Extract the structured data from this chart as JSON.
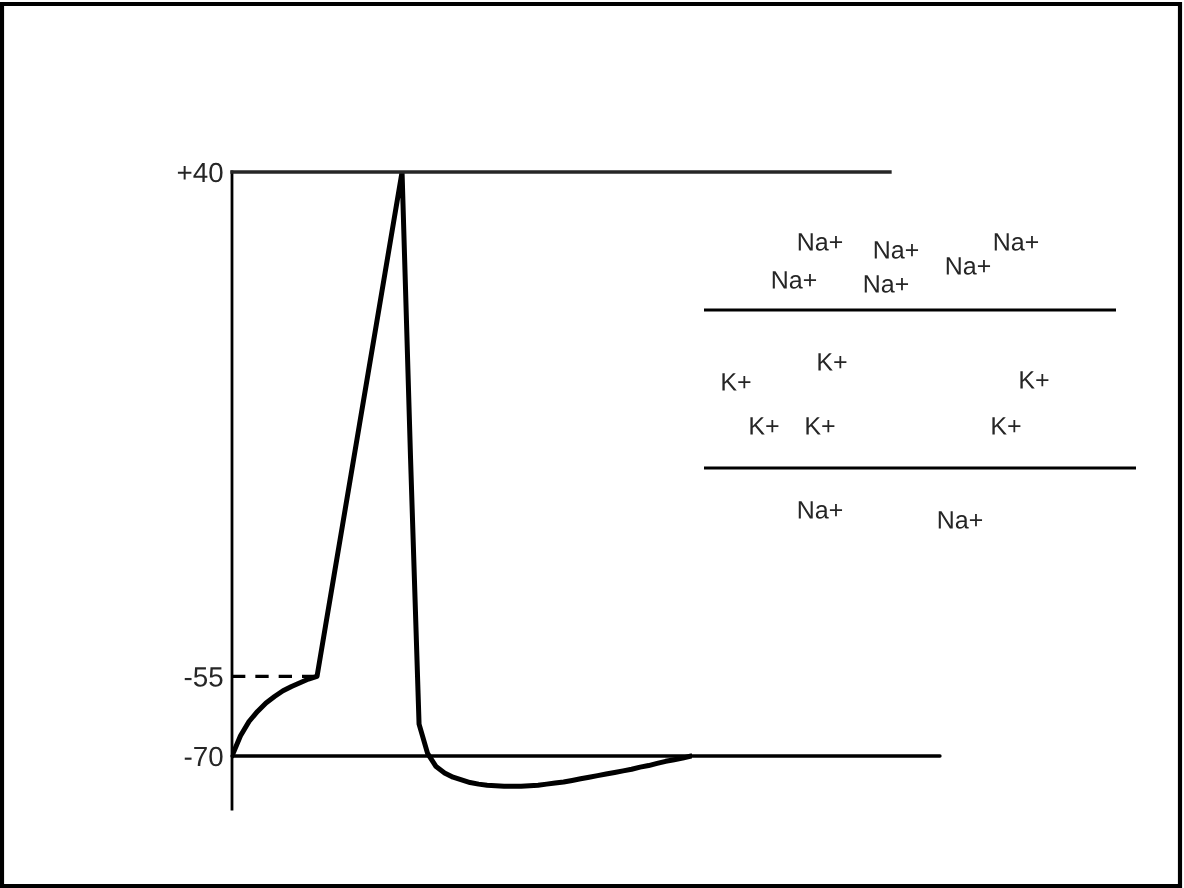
{
  "chart_data": {
    "type": "line",
    "categories": [
      null,
      null,
      null,
      null,
      null,
      null,
      null,
      null,
      null,
      null,
      null,
      null,
      null,
      null,
      null,
      null,
      null,
      null,
      null,
      null,
      null,
      null,
      null,
      null,
      null,
      null,
      null,
      null,
      null,
      null,
      null,
      null,
      null,
      null,
      null,
      null,
      null,
      null,
      null,
      null,
      null,
      null,
      null,
      null,
      null,
      null,
      null,
      null,
      null,
      null,
      null,
      null,
      null,
      null,
      null
    ],
    "series": [
      {
        "color": "#000000",
        "values": [
          -70,
          -66.2,
          -63.5,
          -61.6,
          -60.0,
          -58.8,
          -57.7,
          -56.9,
          -56.2,
          -55.5,
          -55,
          -45.5,
          -36,
          -26.5,
          -17,
          -7.5,
          2,
          11.5,
          21,
          30.5,
          40,
          -14,
          -64,
          -69.5,
          -72,
          -73.2,
          -74,
          -74.5,
          -75,
          -75.3,
          -75.5,
          -75.6,
          -75.7,
          -75.7,
          -75.7,
          -75.6,
          -75.5,
          -75.3,
          -75.1,
          -74.9,
          -74.6,
          -74.3,
          -74,
          -73.7,
          -73.4,
          -73.1,
          -72.8,
          -72.5,
          -72.1,
          -71.8,
          -71.4,
          -71.0,
          -70.7,
          -70.4,
          -70
        ]
      }
    ],
    "ylim": [
      -80,
      40
    ],
    "yticks": [
      {
        "value": 40,
        "label": "+40"
      },
      -55,
      -70
    ],
    "tick_labels": "y",
    "grid": false,
    "legend": false,
    "marker": "none",
    "line_style": "solid",
    "ref_lines": [
      {
        "axis": "y",
        "value": -70,
        "color": "#000000",
        "line_style": "solid"
      },
      {
        "axis": "y",
        "value": -55,
        "color": "#000000",
        "line_style": "dashed"
      }
    ],
    "annotations": [
      "Na+",
      "Na+",
      "Na+",
      "Na+",
      "Na+",
      "Na+",
      "K+",
      "K+",
      "K+",
      "K+",
      "K+",
      "K+",
      "Na+",
      "Na+"
    ]
  }
}
